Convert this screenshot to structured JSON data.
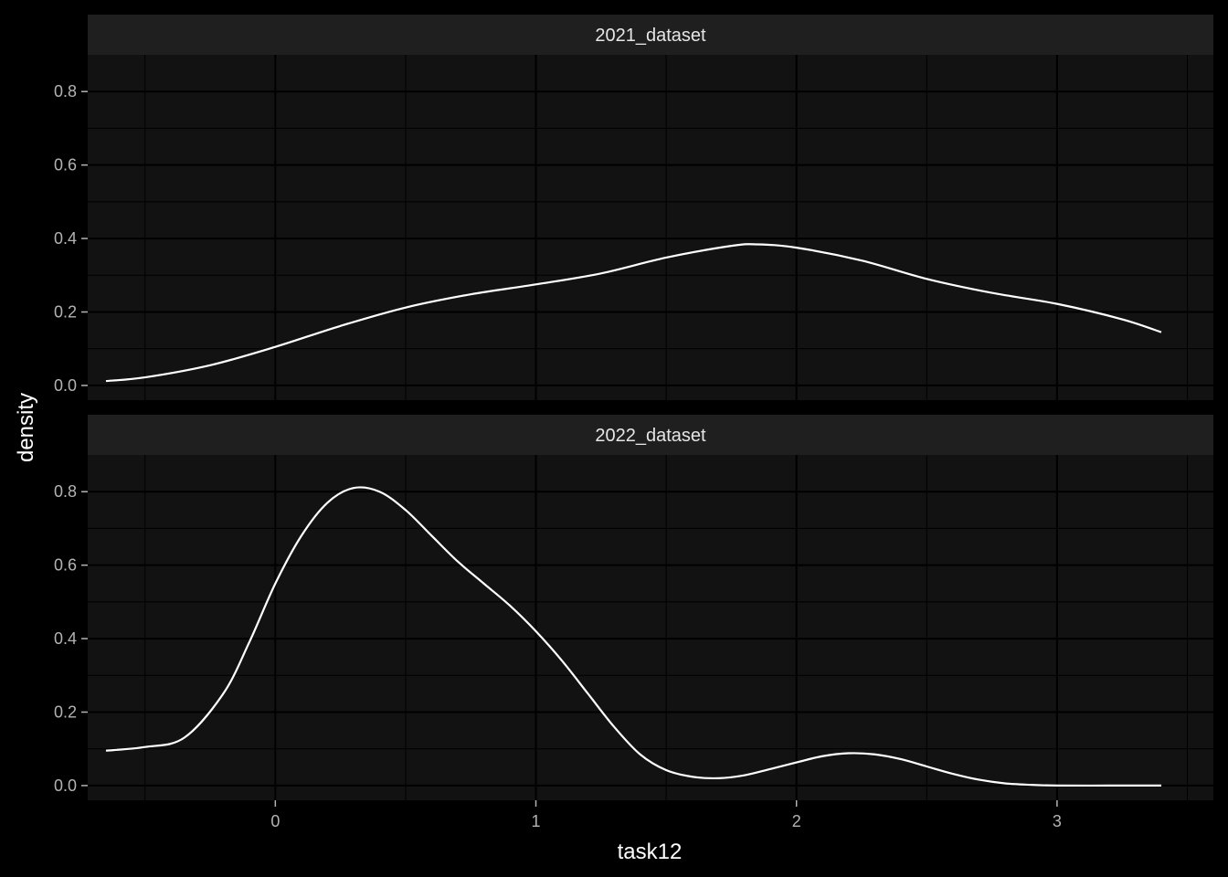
{
  "chart_data": {
    "type": "line",
    "xlabel": "task12",
    "ylabel": "density",
    "xlim": [
      -0.72,
      3.6
    ],
    "ylim": [
      -0.04,
      0.9
    ],
    "x_ticks": [
      0,
      1,
      2,
      3
    ],
    "x_tick_labels": [
      "0",
      "1",
      "2",
      "3"
    ],
    "y_ticks": [
      0.0,
      0.2,
      0.4,
      0.6,
      0.8
    ],
    "y_tick_labels": [
      "0.0",
      "0.2",
      "0.4",
      "0.6",
      "0.8"
    ],
    "grid": true,
    "colors": {
      "background": "#000000",
      "panel": "#121212",
      "strip": "#1f1f1f",
      "line": "#ffffff"
    },
    "panels": [
      {
        "label": "2021_dataset",
        "x": [
          -0.65,
          -0.5,
          -0.25,
          0,
          0.25,
          0.5,
          0.75,
          1.0,
          1.25,
          1.5,
          1.75,
          1.85,
          2.0,
          2.25,
          2.5,
          2.75,
          3.0,
          3.25,
          3.4
        ],
        "y": [
          0.012,
          0.022,
          0.055,
          0.105,
          0.162,
          0.212,
          0.248,
          0.275,
          0.305,
          0.348,
          0.38,
          0.384,
          0.375,
          0.34,
          0.29,
          0.252,
          0.222,
          0.18,
          0.145
        ]
      },
      {
        "label": "2022_dataset",
        "x": [
          -0.65,
          -0.5,
          -0.35,
          -0.2,
          -0.1,
          0,
          0.1,
          0.2,
          0.3,
          0.4,
          0.5,
          0.6,
          0.7,
          0.8,
          0.9,
          1.0,
          1.1,
          1.2,
          1.3,
          1.4,
          1.5,
          1.6,
          1.7,
          1.8,
          1.9,
          2.0,
          2.1,
          2.2,
          2.3,
          2.4,
          2.5,
          2.6,
          2.7,
          2.8,
          2.9,
          3.0,
          3.2,
          3.4
        ],
        "y": [
          0.095,
          0.105,
          0.13,
          0.25,
          0.39,
          0.55,
          0.68,
          0.77,
          0.81,
          0.8,
          0.75,
          0.68,
          0.61,
          0.55,
          0.49,
          0.42,
          0.34,
          0.25,
          0.16,
          0.085,
          0.042,
          0.024,
          0.02,
          0.028,
          0.045,
          0.063,
          0.08,
          0.088,
          0.085,
          0.072,
          0.052,
          0.032,
          0.016,
          0.006,
          0.002,
          0.0,
          0.0,
          0.0
        ]
      }
    ]
  }
}
